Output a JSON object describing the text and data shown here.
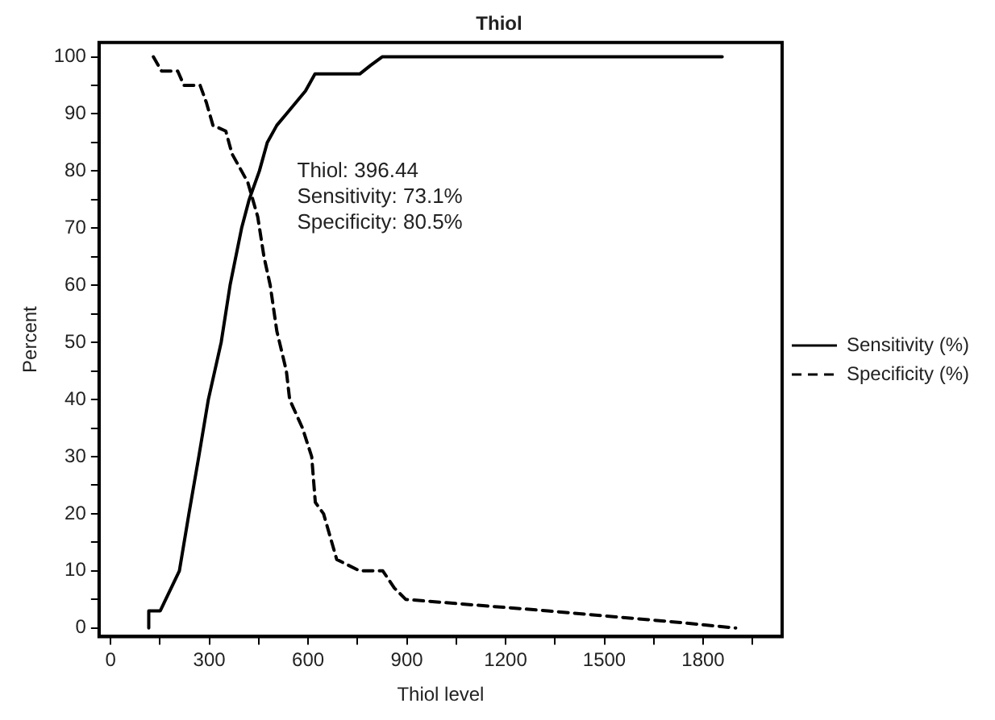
{
  "chart_data": {
    "type": "line",
    "title": "Thiol",
    "xlabel": "Thiol level",
    "ylabel": "Percent",
    "xlim": [
      -35,
      2040
    ],
    "xticks": [
      0,
      {
        "value": 150,
        "label": null
      },
      300,
      {
        "value": 450,
        "label": null
      },
      600,
      {
        "value": 750,
        "label": null
      },
      900,
      {
        "value": 1050,
        "label": null
      },
      1200,
      {
        "value": 1350,
        "label": null
      },
      1500,
      {
        "value": 1650,
        "label": null
      },
      1800,
      {
        "value": 1950,
        "label": null
      }
    ],
    "ylim": [
      -1.5,
      102.5
    ],
    "yticks": [
      0,
      {
        "value": 5,
        "label": null
      },
      10,
      {
        "value": 15,
        "label": null
      },
      20,
      {
        "value": 25,
        "label": null
      },
      30,
      {
        "value": 35,
        "label": null
      },
      40,
      {
        "value": 45,
        "label": null
      },
      50,
      {
        "value": 55,
        "label": null
      },
      60,
      {
        "value": 65,
        "label": null
      },
      70,
      {
        "value": 75,
        "label": null
      },
      80,
      {
        "value": 85,
        "label": null
      },
      90,
      {
        "value": 95,
        "label": null
      },
      100
    ],
    "grid": false,
    "legend": "right",
    "marker": "none",
    "annotations": [
      "Thiol: 396.44",
      "Sensitivity: 73.1%",
      "Specificity: 80.5%"
    ],
    "series": [
      {
        "name": "Sensitivity (%)",
        "color": "#000000",
        "line_style": "solid",
        "x": [
          116,
          116,
          151,
          209,
          238,
          268,
          297,
          336,
          363,
          398,
          421,
          452,
          476,
          505,
          534,
          563,
          592,
          621,
          757,
          790,
          825,
          1858
        ],
        "values": [
          0,
          3,
          3,
          10,
          20,
          30,
          40,
          50,
          60,
          70,
          75,
          80,
          85,
          88,
          90,
          92,
          94,
          97,
          97,
          98.5,
          100,
          100
        ]
      },
      {
        "name": "Specificity (%)",
        "color": "#000000",
        "line_style": "dashed",
        "x": [
          130,
          155,
          204,
          223,
          272,
          291,
          311,
          350,
          369,
          398,
          417,
          447,
          466,
          485,
          505,
          534,
          544,
          583,
          611,
          622,
          647,
          687,
          757,
          827,
          862,
          897,
          1328,
          1724,
          1899
        ],
        "values": [
          100,
          97.5,
          97.5,
          95,
          95,
          92,
          88,
          87,
          83,
          80,
          78,
          72,
          65,
          60,
          52,
          45,
          40,
          35,
          30,
          22,
          20,
          12,
          10,
          10,
          7,
          5,
          3,
          1,
          0
        ]
      }
    ]
  }
}
